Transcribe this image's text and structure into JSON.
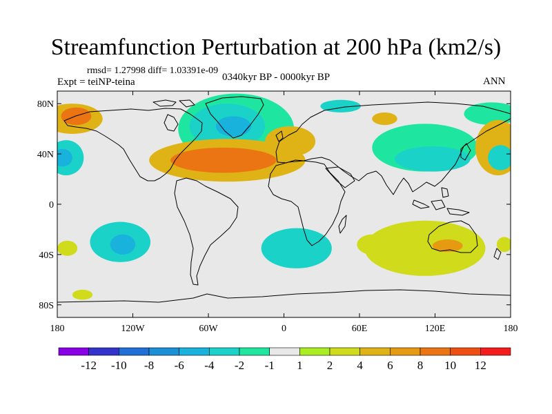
{
  "title": "Streamfunction Perturbation at 200 hPa (km2/s)",
  "stats": "rmsd= 1.27998 diff= 1.03391e-09",
  "experiment": "Expt = teiNP-teina",
  "period": "0340kyr BP - 0000kyr BP",
  "season": "ANN",
  "map": {
    "projection": "cylindrical equidistant",
    "lon_range": [
      -180,
      180
    ],
    "lat_range": [
      -90,
      90
    ],
    "lon_ticks": [
      {
        "value": -180,
        "label": "180"
      },
      {
        "value": -120,
        "label": "120W"
      },
      {
        "value": -60,
        "label": "60W"
      },
      {
        "value": 0,
        "label": "0"
      },
      {
        "value": 60,
        "label": "60E"
      },
      {
        "value": 120,
        "label": "120E"
      },
      {
        "value": 180,
        "label": "180"
      }
    ],
    "lat_ticks": [
      {
        "value": 80,
        "label": "80N"
      },
      {
        "value": 40,
        "label": "40N"
      },
      {
        "value": 0,
        "label": "0"
      },
      {
        "value": -40,
        "label": "40S"
      },
      {
        "value": -80,
        "label": "80S"
      }
    ],
    "background_color": "#e8e8e8",
    "anomalies": [
      {
        "lon": -168,
        "lat": 68,
        "rlon": 24,
        "rlat": 12,
        "level": 3
      },
      {
        "lon": -165,
        "lat": 70,
        "rlon": 12,
        "rlat": 7,
        "level": 5
      },
      {
        "lon": -173,
        "lat": 37,
        "rlon": 14,
        "rlat": 14,
        "level": -2
      },
      {
        "lon": -176,
        "lat": 37,
        "rlon": 8,
        "rlat": 7,
        "level": -3
      },
      {
        "lon": -38,
        "lat": 60,
        "rlon": 46,
        "rlat": 28,
        "level": -1
      },
      {
        "lon": -45,
        "lat": 62,
        "rlon": 30,
        "rlat": 18,
        "level": -2
      },
      {
        "lon": -40,
        "lat": 62,
        "rlon": 14,
        "rlat": 8,
        "level": -3
      },
      {
        "lon": -45,
        "lat": 35,
        "rlon": 62,
        "rlat": 17,
        "level": 3
      },
      {
        "lon": -48,
        "lat": 35,
        "rlon": 42,
        "rlat": 10,
        "level": 5
      },
      {
        "lon": 5,
        "lat": 50,
        "rlon": 20,
        "rlat": 12,
        "level": 3
      },
      {
        "lon": 45,
        "lat": 78,
        "rlon": 16,
        "rlat": 5,
        "level": -2
      },
      {
        "lon": 80,
        "lat": 68,
        "rlon": 10,
        "rlat": 5,
        "level": 3
      },
      {
        "lon": 112,
        "lat": 45,
        "rlon": 42,
        "rlat": 19,
        "level": -1
      },
      {
        "lon": 118,
        "lat": 36,
        "rlon": 30,
        "rlat": 10,
        "level": -2
      },
      {
        "lon": 165,
        "lat": 72,
        "rlon": 22,
        "rlat": 9,
        "level": -1
      },
      {
        "lon": 170,
        "lat": 45,
        "rlon": 18,
        "rlat": 22,
        "level": 3
      },
      {
        "lon": 172,
        "lat": 37,
        "rlon": 10,
        "rlat": 10,
        "level": -2
      },
      {
        "lon": -130,
        "lat": -30,
        "rlon": 24,
        "rlat": 16,
        "level": -2
      },
      {
        "lon": -128,
        "lat": -32,
        "rlon": 10,
        "rlat": 8,
        "level": -3
      },
      {
        "lon": -172,
        "lat": -35,
        "rlon": 8,
        "rlat": 6,
        "level": 2
      },
      {
        "lon": -160,
        "lat": -72,
        "rlon": 8,
        "rlat": 4,
        "level": 2
      },
      {
        "lon": 10,
        "lat": -35,
        "rlon": 28,
        "rlat": 16,
        "level": -2
      },
      {
        "lon": 70,
        "lat": -32,
        "rlon": 12,
        "rlat": 8,
        "level": 2
      },
      {
        "lon": 112,
        "lat": -35,
        "rlon": 48,
        "rlat": 22,
        "level": 2
      },
      {
        "lon": 130,
        "lat": -33,
        "rlon": 12,
        "rlat": 5,
        "level": 4
      },
      {
        "lon": 175,
        "lat": -32,
        "rlon": 6,
        "rlat": 6,
        "level": 2
      }
    ]
  },
  "colorbar": {
    "colors": [
      "#8a00e6",
      "#3333cc",
      "#1f6fd6",
      "#1b8fd8",
      "#18b2dd",
      "#1ad2c8",
      "#1ee6a0",
      "#e8e8e8",
      "#aaee22",
      "#cfdb1b",
      "#dfb316",
      "#e69a12",
      "#ea7512",
      "#ee5014",
      "#f41c1c"
    ],
    "labels": [
      "-12",
      "-10",
      "-8",
      "-6",
      "-4",
      "-2",
      "-1",
      "1",
      "2",
      "4",
      "6",
      "8",
      "10",
      "12"
    ]
  }
}
